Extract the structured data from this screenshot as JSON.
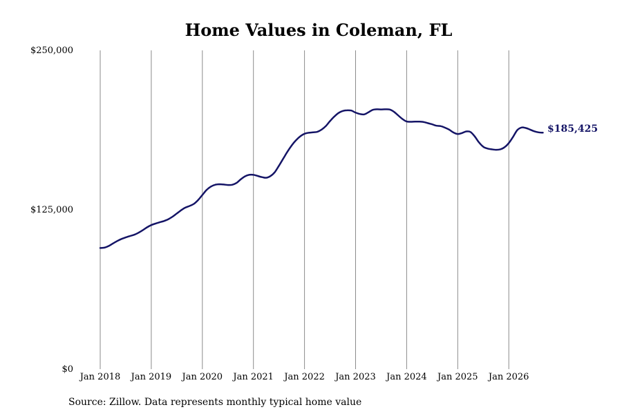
{
  "chart_data": {
    "type": "line",
    "title": "Home Values in Coleman, FL",
    "xlabel": "",
    "ylabel": "",
    "ylim": [
      0,
      250000
    ],
    "y_ticks": [
      {
        "value": 0,
        "label": "$0"
      },
      {
        "value": 125000,
        "label": "$125,000"
      },
      {
        "value": 250000,
        "label": "$250,000"
      }
    ],
    "x_ticks": [
      "Jan 2018",
      "Jan 2019",
      "Jan 2020",
      "Jan 2021",
      "Jan 2022",
      "Jan 2023",
      "Jan 2024",
      "Jan 2025",
      "Jan 2026"
    ],
    "grid": "vertical",
    "line_color": "#141466",
    "end_label": "$185,425",
    "series": [
      {
        "x": [
          "2018-01",
          "2018-02",
          "2018-03",
          "2018-04",
          "2018-05",
          "2018-06",
          "2018-07",
          "2018-08",
          "2018-09",
          "2018-10",
          "2018-11",
          "2018-12",
          "2019-01",
          "2019-02",
          "2019-03",
          "2019-04",
          "2019-05",
          "2019-06",
          "2019-07",
          "2019-08",
          "2019-09",
          "2019-10",
          "2019-11",
          "2019-12",
          "2020-01",
          "2020-02",
          "2020-03",
          "2020-04",
          "2020-05",
          "2020-06",
          "2020-07",
          "2020-08",
          "2020-09",
          "2020-10",
          "2020-11",
          "2020-12",
          "2021-01",
          "2021-02",
          "2021-03",
          "2021-04",
          "2021-05",
          "2021-06",
          "2021-07",
          "2021-08",
          "2021-09",
          "2021-10",
          "2021-11",
          "2021-12",
          "2022-01",
          "2022-02",
          "2022-03",
          "2022-04",
          "2022-05",
          "2022-06",
          "2022-07",
          "2022-08",
          "2022-09",
          "2022-10",
          "2022-11",
          "2022-12",
          "2023-01",
          "2023-02",
          "2023-03",
          "2023-04",
          "2023-05",
          "2023-06",
          "2023-07",
          "2023-08",
          "2023-09",
          "2023-10",
          "2023-11",
          "2023-12",
          "2024-01",
          "2024-02",
          "2024-03",
          "2024-04",
          "2024-05",
          "2024-06",
          "2024-07",
          "2024-08",
          "2024-09",
          "2024-10",
          "2024-11",
          "2024-12",
          "2025-01",
          "2025-02",
          "2025-03",
          "2025-04",
          "2025-05",
          "2025-06",
          "2025-07",
          "2025-08",
          "2025-09",
          "2025-10",
          "2025-11",
          "2025-12",
          "2026-01",
          "2026-02",
          "2026-03",
          "2026-04",
          "2026-05",
          "2026-06",
          "2026-07",
          "2026-08",
          "2026-09"
        ],
        "values": [
          95000,
          95300,
          96600,
          98600,
          100500,
          102100,
          103300,
          104400,
          105400,
          107000,
          109000,
          111200,
          113000,
          114200,
          115200,
          116200,
          117600,
          119600,
          122100,
          124600,
          126700,
          128000,
          129600,
          132600,
          136600,
          140600,
          143200,
          144600,
          145000,
          144800,
          144400,
          144600,
          146000,
          148800,
          151200,
          152400,
          152400,
          151500,
          150600,
          150100,
          151400,
          154400,
          159600,
          165100,
          170600,
          175500,
          179500,
          182600,
          184600,
          185400,
          185700,
          186100,
          187800,
          190600,
          194600,
          198100,
          200900,
          202500,
          203000,
          202800,
          201200,
          200100,
          199800,
          201400,
          203300,
          203800,
          203700,
          203800,
          203600,
          201900,
          199000,
          196200,
          194200,
          194000,
          194100,
          194100,
          193800,
          192900,
          192000,
          190900,
          190600,
          189400,
          187800,
          185600,
          184400,
          185200,
          186400,
          186000,
          182500,
          177800,
          174400,
          173000,
          172400,
          172000,
          172400,
          174000,
          177300,
          182200,
          187500,
          189500,
          189100,
          187900,
          186500,
          185700,
          185425
        ]
      }
    ]
  },
  "source_note": "Source: Zillow. Data represents monthly typical home value"
}
